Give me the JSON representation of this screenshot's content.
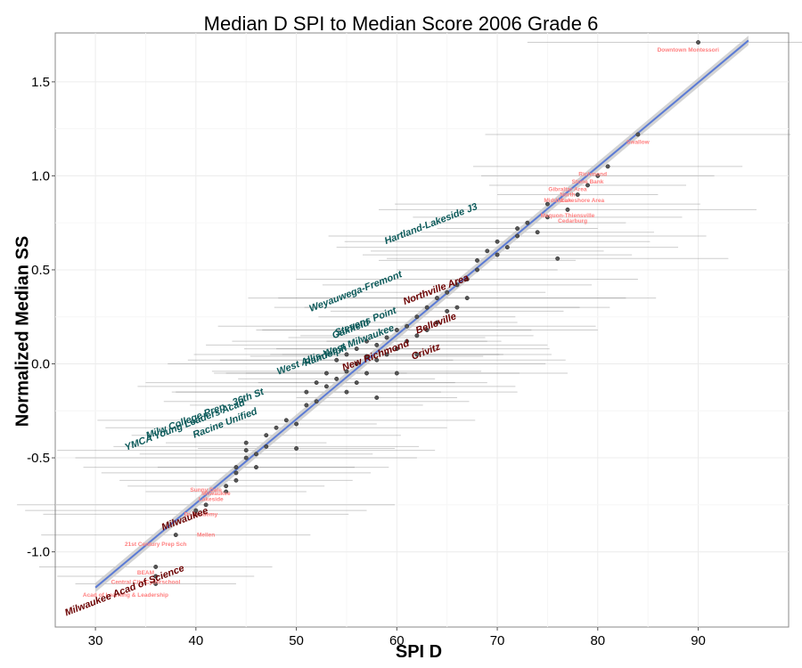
{
  "chart_data": {
    "type": "scatter",
    "title": "Median D SPI to Median Score 2006 Grade 6",
    "xlabel": "SPI D",
    "ylabel": "Normalized Median SS",
    "xlim": [
      26,
      99
    ],
    "ylim": [
      -1.4,
      1.76
    ],
    "x_ticks": [
      30,
      40,
      50,
      60,
      70,
      80,
      90
    ],
    "y_ticks": [
      -1.0,
      -0.5,
      0.0,
      0.5,
      1.0,
      1.5
    ],
    "x_tick_labels": [
      "30",
      "40",
      "50",
      "60",
      "70",
      "80",
      "90"
    ],
    "y_tick_labels": [
      "-1.0",
      "-0.5",
      "0.0",
      "0.5",
      "1.0",
      "1.5"
    ],
    "grid": true,
    "trend_line": {
      "x": [
        30,
        95
      ],
      "y": [
        -1.19,
        1.72
      ],
      "color": "#5b7bd5",
      "band_color": "#c8c8c8"
    },
    "colors": {
      "above": "#0c5a5a",
      "below": "#6b0000",
      "minor": "#ff7f7f",
      "points": "#555555"
    },
    "points": [
      {
        "x": 36,
        "y": -1.17
      },
      {
        "x": 36,
        "y": -1.13
      },
      {
        "x": 36,
        "y": -1.08
      },
      {
        "x": 38,
        "y": -0.91
      },
      {
        "x": 40,
        "y": -0.8
      },
      {
        "x": 40,
        "y": -0.78
      },
      {
        "x": 41,
        "y": -0.75
      },
      {
        "x": 43,
        "y": -0.68
      },
      {
        "x": 43,
        "y": -0.65
      },
      {
        "x": 44,
        "y": -0.62
      },
      {
        "x": 44,
        "y": -0.58
      },
      {
        "x": 44,
        "y": -0.55
      },
      {
        "x": 45,
        "y": -0.5
      },
      {
        "x": 45,
        "y": -0.46
      },
      {
        "x": 45,
        "y": -0.42
      },
      {
        "x": 46,
        "y": -0.55
      },
      {
        "x": 46,
        "y": -0.48
      },
      {
        "x": 47,
        "y": -0.38
      },
      {
        "x": 47,
        "y": -0.44
      },
      {
        "x": 48,
        "y": -0.34
      },
      {
        "x": 49,
        "y": -0.3
      },
      {
        "x": 50,
        "y": -0.32
      },
      {
        "x": 50,
        "y": -0.45
      },
      {
        "x": 51,
        "y": -0.22
      },
      {
        "x": 51,
        "y": -0.15
      },
      {
        "x": 52,
        "y": -0.2
      },
      {
        "x": 52,
        "y": -0.1
      },
      {
        "x": 53,
        "y": -0.12
      },
      {
        "x": 53,
        "y": -0.05
      },
      {
        "x": 54,
        "y": -0.08
      },
      {
        "x": 54,
        "y": 0.02
      },
      {
        "x": 55,
        "y": -0.04
      },
      {
        "x": 55,
        "y": 0.05
      },
      {
        "x": 55,
        "y": -0.15
      },
      {
        "x": 56,
        "y": 0.0
      },
      {
        "x": 56,
        "y": 0.08
      },
      {
        "x": 56,
        "y": -0.1
      },
      {
        "x": 57,
        "y": 0.04
      },
      {
        "x": 57,
        "y": 0.12
      },
      {
        "x": 57,
        "y": -0.05
      },
      {
        "x": 58,
        "y": 0.1
      },
      {
        "x": 58,
        "y": 0.02
      },
      {
        "x": 58,
        "y": -0.18
      },
      {
        "x": 59,
        "y": 0.14
      },
      {
        "x": 59,
        "y": 0.05
      },
      {
        "x": 60,
        "y": 0.18
      },
      {
        "x": 60,
        "y": 0.08
      },
      {
        "x": 60,
        "y": -0.05
      },
      {
        "x": 61,
        "y": 0.2
      },
      {
        "x": 61,
        "y": 0.12
      },
      {
        "x": 62,
        "y": 0.25
      },
      {
        "x": 62,
        "y": 0.15
      },
      {
        "x": 62,
        "y": 0.05
      },
      {
        "x": 63,
        "y": 0.3
      },
      {
        "x": 63,
        "y": 0.18
      },
      {
        "x": 64,
        "y": 0.35
      },
      {
        "x": 64,
        "y": 0.22
      },
      {
        "x": 65,
        "y": 0.38
      },
      {
        "x": 65,
        "y": 0.28
      },
      {
        "x": 66,
        "y": 0.42
      },
      {
        "x": 66,
        "y": 0.3
      },
      {
        "x": 67,
        "y": 0.45
      },
      {
        "x": 67,
        "y": 0.35
      },
      {
        "x": 68,
        "y": 0.5
      },
      {
        "x": 68,
        "y": 0.55
      },
      {
        "x": 69,
        "y": 0.6
      },
      {
        "x": 70,
        "y": 0.58
      },
      {
        "x": 70,
        "y": 0.65
      },
      {
        "x": 71,
        "y": 0.62
      },
      {
        "x": 72,
        "y": 0.68
      },
      {
        "x": 72,
        "y": 0.72
      },
      {
        "x": 73,
        "y": 0.75
      },
      {
        "x": 74,
        "y": 0.7
      },
      {
        "x": 75,
        "y": 0.78
      },
      {
        "x": 75,
        "y": 0.85
      },
      {
        "x": 76,
        "y": 0.56
      },
      {
        "x": 77,
        "y": 0.82
      },
      {
        "x": 78,
        "y": 0.9
      },
      {
        "x": 79,
        "y": 0.95
      },
      {
        "x": 80,
        "y": 1.0
      },
      {
        "x": 81,
        "y": 1.05
      },
      {
        "x": 84,
        "y": 1.22
      },
      {
        "x": 90,
        "y": 1.71
      }
    ],
    "labels_above": [
      {
        "text": "Hartland-Lakeside J3",
        "x": 63.5,
        "y": 0.73
      },
      {
        "text": "Weyauwega-Fremont",
        "x": 56,
        "y": 0.37
      },
      {
        "text": "Randolph",
        "x": 53,
        "y": 0.03
      },
      {
        "text": "West Allis-West Milwaukee",
        "x": 54,
        "y": 0.06
      },
      {
        "text": "Stevens Point",
        "x": 57,
        "y": 0.21
      },
      {
        "text": "Oakfield",
        "x": 55.5,
        "y": 0.17
      },
      {
        "text": "Milw College Prep - 36th St",
        "x": 41,
        "y": -0.28
      },
      {
        "text": "YMCA Young Leaders Acad",
        "x": 39,
        "y": -0.34
      },
      {
        "text": "Racine Unified",
        "x": 43,
        "y": -0.33
      }
    ],
    "labels_below": [
      {
        "text": "Northville Area",
        "x": 64,
        "y": 0.38
      },
      {
        "text": "Belleville",
        "x": 64,
        "y": 0.2
      },
      {
        "text": "New Richmond",
        "x": 58,
        "y": 0.03
      },
      {
        "text": "Crivitz",
        "x": 63,
        "y": 0.05
      },
      {
        "text": "Milwaukee",
        "x": 39,
        "y": -0.84
      },
      {
        "text": "Milwaukee Acad of Science",
        "x": 33,
        "y": -1.22
      }
    ],
    "labels_minor": [
      {
        "text": "Downtown Montessori",
        "x": 89,
        "y": 1.66
      },
      {
        "text": "Swallow",
        "x": 84,
        "y": 1.17
      },
      {
        "text": "Richmond",
        "x": 79.5,
        "y": 1.0
      },
      {
        "text": "Stone Bank",
        "x": 79,
        "y": 0.96
      },
      {
        "text": "Gibraltar Area",
        "x": 77,
        "y": 0.92
      },
      {
        "text": "North",
        "x": 77,
        "y": 0.89
      },
      {
        "text": "Middleton",
        "x": 76,
        "y": 0.86
      },
      {
        "text": "Lakeshore Area",
        "x": 78.5,
        "y": 0.86
      },
      {
        "text": "Mequon-Thiensville",
        "x": 77,
        "y": 0.78
      },
      {
        "text": "Cedarburg",
        "x": 77.5,
        "y": 0.75
      },
      {
        "text": "Sunny Dale",
        "x": 41,
        "y": -0.68
      },
      {
        "text": "Milwaukee",
        "x": 42,
        "y": -0.7
      },
      {
        "text": "Lakeside",
        "x": 41.5,
        "y": -0.73
      },
      {
        "text": "Dr Academy",
        "x": 40.5,
        "y": -0.81
      },
      {
        "text": "Mellen",
        "x": 41,
        "y": -0.92
      },
      {
        "text": "21st Century Prep Sch",
        "x": 36,
        "y": -0.97
      },
      {
        "text": "BEAM",
        "x": 35,
        "y": -1.12
      },
      {
        "text": "Central City Cyberschool",
        "x": 35,
        "y": -1.17
      },
      {
        "text": "Acad of Learning & Leadership",
        "x": 33,
        "y": -1.24
      }
    ]
  }
}
